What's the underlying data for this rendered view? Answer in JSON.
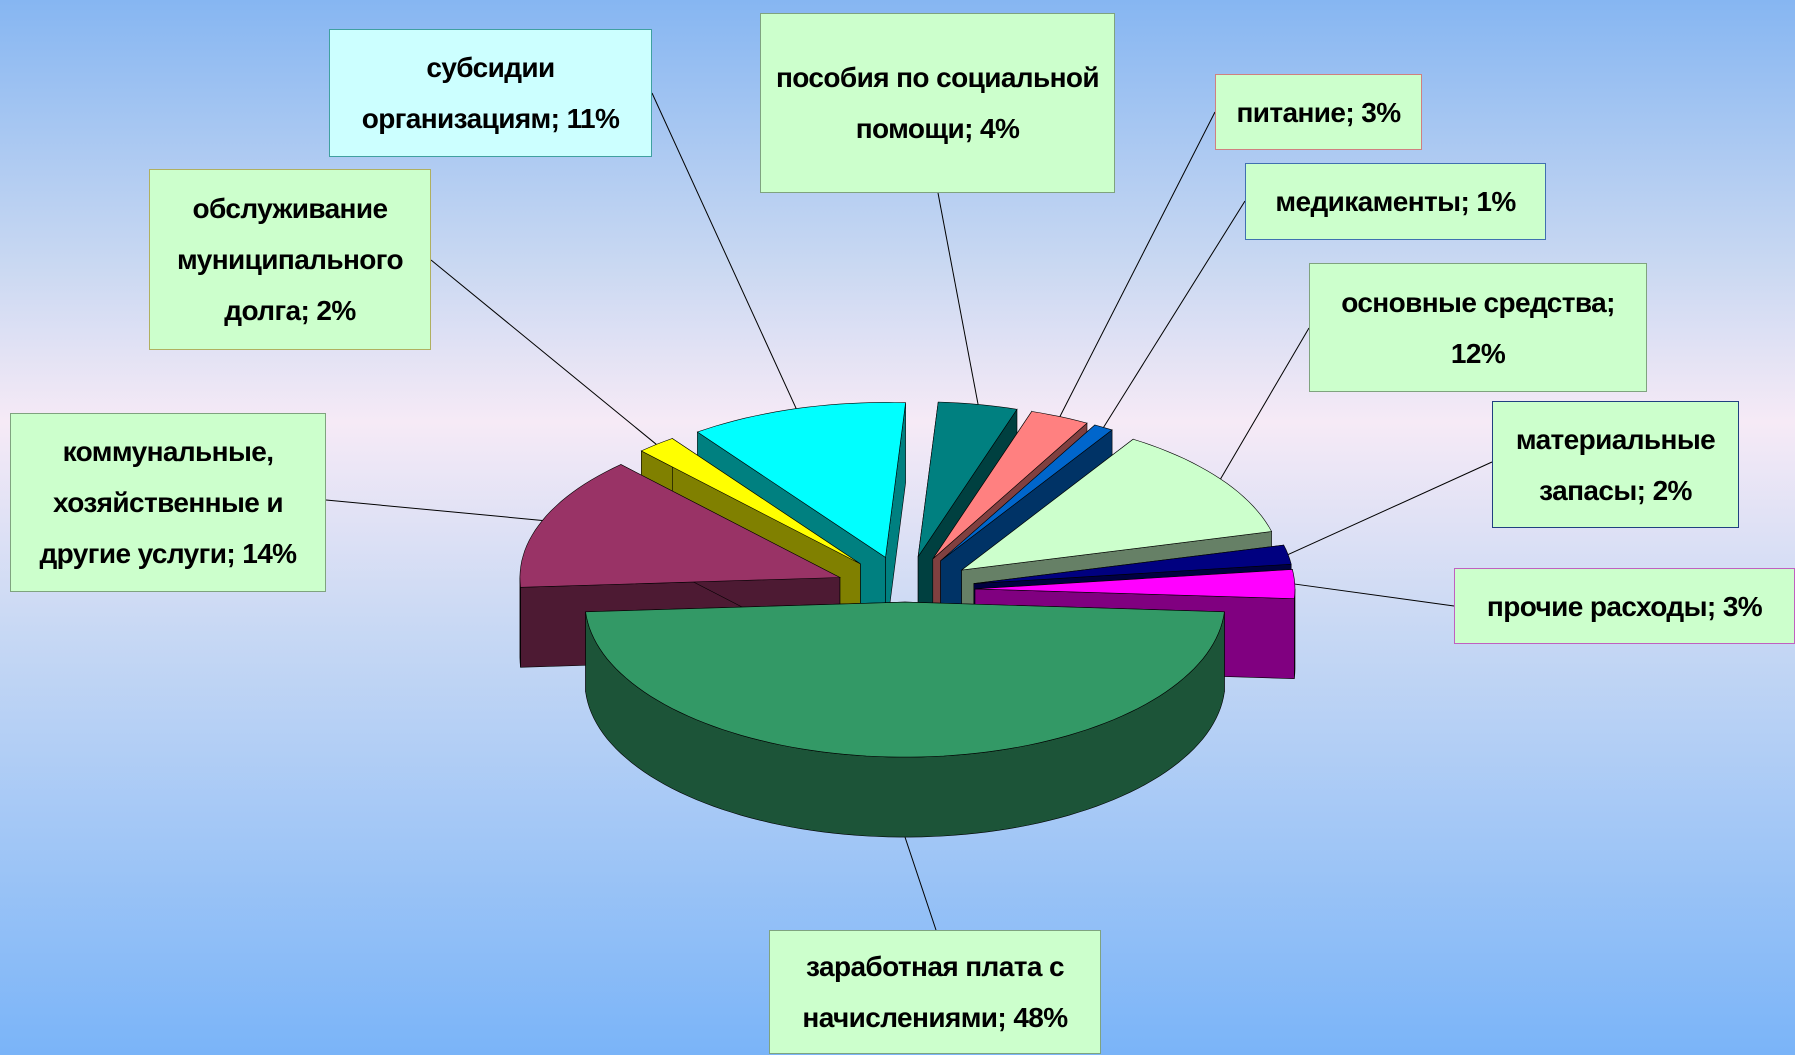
{
  "chart_data": {
    "type": "pie3d",
    "categories": [
      "заработная плата с начислениями",
      "коммунальные, хозяйственные и другие услуги",
      "обслуживание муниципального долга",
      "субсидии организациям",
      "пособия по социальной помощи",
      "питание",
      "медикаменты",
      "основные средства",
      "материальные запасы",
      "прочие расходы"
    ],
    "values": [
      48,
      14,
      2,
      11,
      4,
      3,
      1,
      12,
      2,
      3
    ],
    "value_labels": [
      "48%",
      "14%",
      "2%",
      "11%",
      "4%",
      "3%",
      "1%",
      "12%",
      "2%",
      "3%"
    ],
    "label_separator": "; ",
    "colors": [
      "#339966",
      "#993366",
      "#ffff00",
      "#00ffff",
      "#008080",
      "#ff8080",
      "#0066cc",
      "#ccffcc",
      "#000080",
      "#ff00ff"
    ]
  }
}
